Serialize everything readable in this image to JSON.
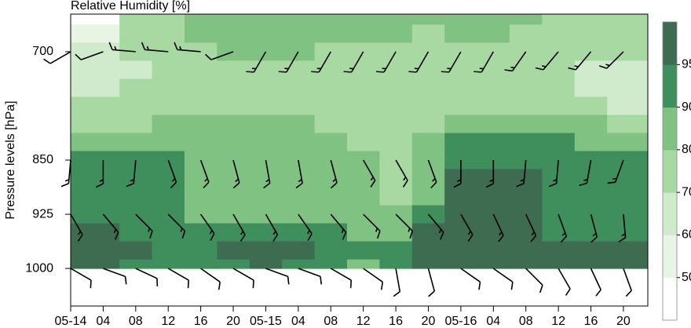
{
  "chart_data": {
    "type": "contour",
    "title": "Relative Humidity [%]",
    "y_label": "Pressure levels [hPa]",
    "x": [
      0,
      4,
      8,
      12,
      16,
      20,
      24,
      28,
      32,
      36,
      40,
      44,
      48,
      52,
      56,
      60,
      64,
      68
    ],
    "xlim": [
      0,
      71
    ],
    "xticks": [
      {
        "value": 0,
        "label": "05-14"
      },
      {
        "value": 4,
        "label": "04"
      },
      {
        "value": 8,
        "label": "08"
      },
      {
        "value": 12,
        "label": "12"
      },
      {
        "value": 16,
        "label": "16"
      },
      {
        "value": 20,
        "label": "20"
      },
      {
        "value": 24,
        "label": "05-15"
      },
      {
        "value": 28,
        "label": "04"
      },
      {
        "value": 32,
        "label": "08"
      },
      {
        "value": 36,
        "label": "12"
      },
      {
        "value": 40,
        "label": "16"
      },
      {
        "value": 44,
        "label": "20"
      },
      {
        "value": 48,
        "label": "05-16"
      },
      {
        "value": 52,
        "label": "04"
      },
      {
        "value": 56,
        "label": "08"
      },
      {
        "value": 60,
        "label": "12"
      },
      {
        "value": 64,
        "label": "16"
      },
      {
        "value": 68,
        "label": "20"
      }
    ],
    "pressure": [
      650,
      675,
      700,
      725,
      750,
      775,
      800,
      825,
      850,
      875,
      900,
      925,
      950,
      975,
      1000
    ],
    "ylim": [
      1052,
      648
    ],
    "yticks": [
      700,
      850,
      925,
      1000
    ],
    "values": [
      [
        45,
        55,
        62,
        65,
        68,
        72,
        78,
        82,
        90,
        92,
        92,
        93,
        96,
        96,
        96
      ],
      [
        48,
        58,
        63,
        64,
        66,
        70,
        76,
        82,
        91,
        92,
        92,
        93,
        96,
        97,
        96
      ],
      [
        72,
        74,
        72,
        68,
        70,
        74,
        78,
        82,
        91,
        92,
        92,
        92,
        94,
        96,
        94
      ],
      [
        76,
        78,
        76,
        74,
        75,
        78,
        80,
        84,
        90,
        90,
        91,
        90,
        92,
        93,
        92
      ],
      [
        82,
        80,
        78,
        76,
        76,
        78,
        80,
        82,
        86,
        87,
        88,
        88,
        90,
        92,
        92
      ],
      [
        84,
        82,
        80,
        78,
        76,
        78,
        80,
        82,
        86,
        86,
        87,
        88,
        92,
        96,
        94
      ],
      [
        84,
        82,
        80,
        77,
        76,
        78,
        80,
        82,
        86,
        86,
        86,
        88,
        93,
        97,
        95
      ],
      [
        84,
        82,
        80,
        77,
        76,
        76,
        80,
        82,
        86,
        86,
        86,
        88,
        92,
        96,
        94
      ],
      [
        84,
        82,
        78,
        76,
        74,
        74,
        78,
        80,
        84,
        84,
        86,
        88,
        92,
        93,
        92
      ],
      [
        84,
        82,
        78,
        76,
        76,
        75,
        76,
        78,
        80,
        80,
        82,
        84,
        88,
        90,
        88
      ],
      [
        82,
        80,
        78,
        76,
        76,
        75,
        76,
        76,
        78,
        76,
        76,
        80,
        88,
        92,
        90
      ],
      [
        80,
        78,
        76,
        74,
        74,
        75,
        78,
        80,
        84,
        86,
        88,
        92,
        96,
        97,
        96
      ],
      [
        82,
        80,
        78,
        76,
        76,
        78,
        82,
        90,
        92,
        96,
        97,
        97,
        97,
        97,
        96
      ],
      [
        82,
        80,
        78,
        76,
        76,
        78,
        82,
        90,
        93,
        96,
        97,
        97,
        97,
        97,
        96
      ],
      [
        80,
        78,
        76,
        74,
        76,
        78,
        84,
        91,
        93,
        96,
        96,
        96,
        96,
        97,
        96
      ],
      [
        78,
        76,
        74,
        74,
        74,
        76,
        82,
        90,
        92,
        93,
        93,
        92,
        94,
        96,
        96
      ],
      [
        76,
        74,
        72,
        68,
        66,
        70,
        80,
        88,
        91,
        92,
        92,
        92,
        94,
        96,
        96
      ],
      [
        76,
        74,
        70,
        66,
        64,
        68,
        78,
        86,
        90,
        92,
        92,
        91,
        93,
        96,
        96
      ]
    ],
    "levels": [
      50,
      60,
      70,
      80,
      90,
      95
    ],
    "colors": [
      "#ffffff",
      "#e8f5e5",
      "#d0ebcb",
      "#a9d9a3",
      "#80c282",
      "#3f8f5d",
      "#3e6c50"
    ],
    "barbs": {
      "levels": [
        700,
        850,
        925,
        1000
      ],
      "direction": [
        [
          240,
          250,
          275,
          275,
          275,
          250,
          210,
          210,
          210,
          210,
          210,
          210,
          210,
          210,
          215,
          220,
          220,
          225
        ],
        [
          185,
          180,
          185,
          160,
          160,
          165,
          170,
          170,
          165,
          150,
          150,
          160,
          180,
          180,
          185,
          185,
          190,
          200
        ],
        [
          150,
          140,
          135,
          135,
          145,
          150,
          150,
          145,
          140,
          135,
          135,
          140,
          150,
          155,
          155,
          160,
          165,
          175
        ],
        [
          120,
          110,
          115,
          120,
          125,
          120,
          110,
          110,
          120,
          125,
          170,
          165,
          125,
          125,
          135,
          150,
          155,
          160
        ]
      ],
      "speed": [
        [
          10,
          10,
          15,
          15,
          15,
          10,
          15,
          15,
          15,
          15,
          15,
          15,
          15,
          15,
          15,
          15,
          15,
          15
        ],
        [
          15,
          15,
          15,
          15,
          15,
          15,
          15,
          15,
          15,
          15,
          15,
          15,
          15,
          15,
          15,
          15,
          15,
          15
        ],
        [
          15,
          15,
          15,
          15,
          15,
          15,
          15,
          15,
          15,
          15,
          15,
          15,
          15,
          15,
          15,
          15,
          15,
          15
        ],
        [
          10,
          10,
          10,
          10,
          10,
          10,
          10,
          10,
          10,
          10,
          10,
          10,
          10,
          10,
          10,
          10,
          10,
          10
        ]
      ]
    }
  }
}
